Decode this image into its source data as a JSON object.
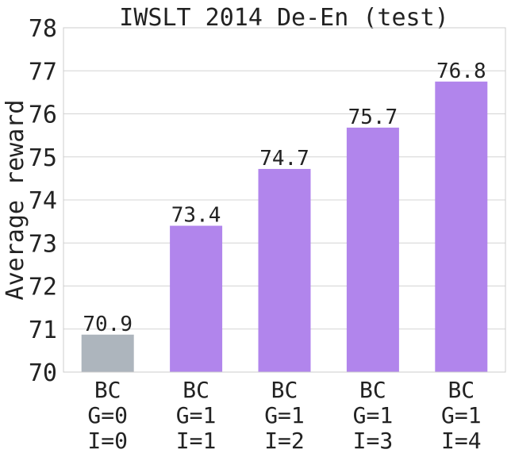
{
  "chart_data": {
    "type": "bar",
    "title": "IWSLT 2014 De-En (test)",
    "xlabel": "",
    "ylabel": "Average reward",
    "ylim": [
      70,
      78
    ],
    "yticks": [
      "70",
      "71",
      "72",
      "73",
      "74",
      "75",
      "76",
      "77",
      "78"
    ],
    "grid": true,
    "categories": [
      [
        "BC",
        "G=0",
        "I=0"
      ],
      [
        "BC",
        "G=1",
        "I=1"
      ],
      [
        "BC",
        "G=1",
        "I=2"
      ],
      [
        "BC",
        "G=1",
        "I=3"
      ],
      [
        "BC",
        "G=1",
        "I=4"
      ]
    ],
    "values": [
      70.87,
      73.4,
      74.72,
      75.68,
      76.75
    ],
    "data_labels": [
      "70.9",
      "73.4",
      "74.7",
      "75.7",
      "76.8"
    ],
    "colors": [
      "#adb5bd",
      "#b185ec",
      "#b185ec",
      "#b185ec",
      "#b185ec"
    ]
  },
  "colors": {
    "grid": "#d4d4d4",
    "axis_frame": "#cccccc",
    "text": "#222222"
  }
}
